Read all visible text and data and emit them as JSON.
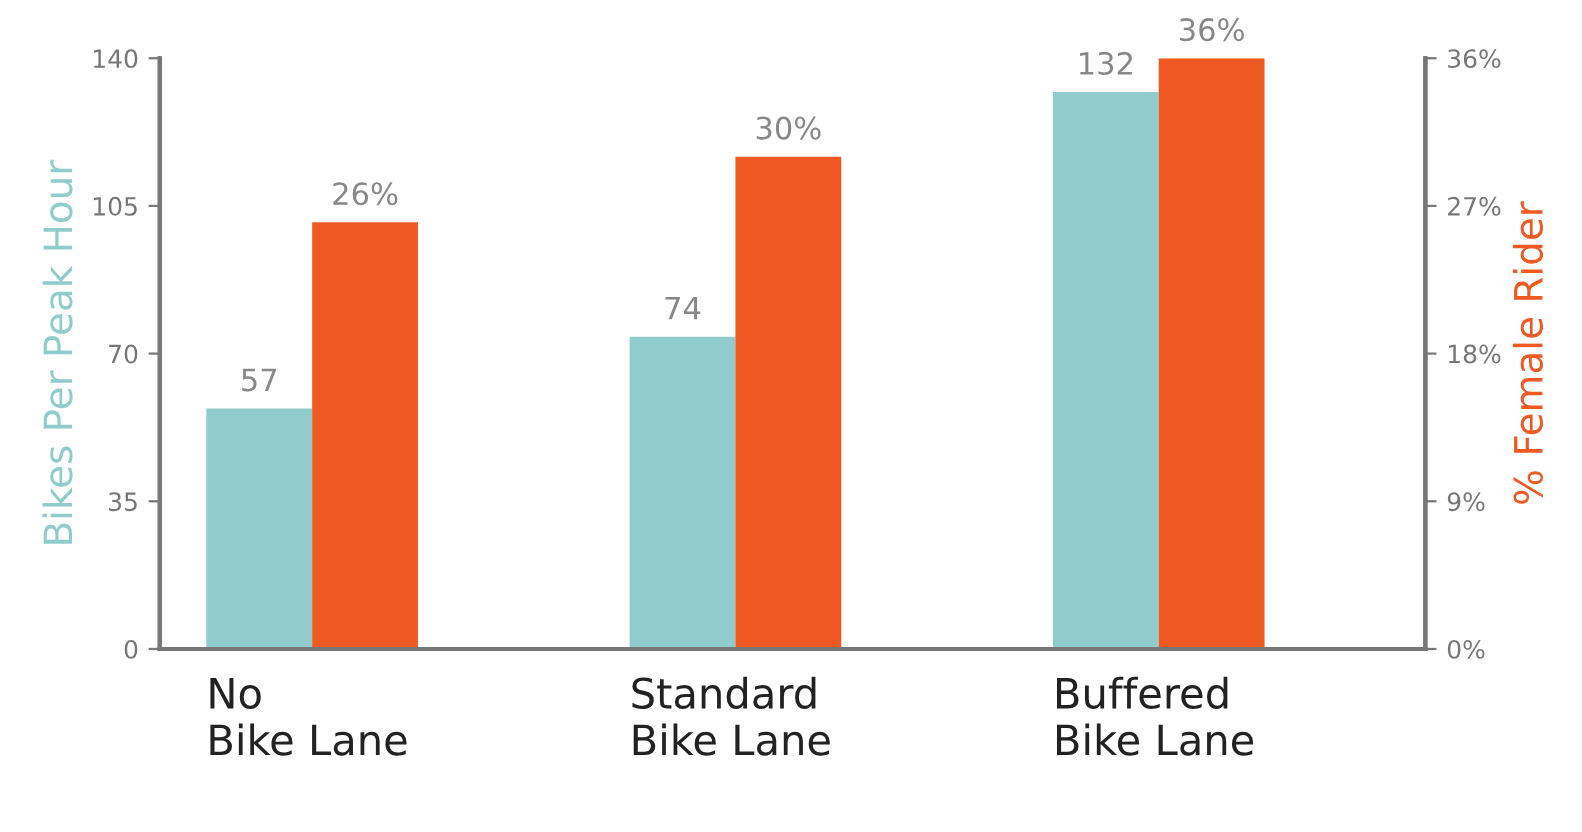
{
  "chart_data": {
    "type": "bar",
    "categories": [
      "No\nBike Lane",
      "Standard\nBike Lane",
      "Buffered\nBike Lane"
    ],
    "ylabel": "Bikes Per Peak Hour",
    "y2label": "% Female Rider",
    "ylim": [
      0,
      140
    ],
    "yticks": [
      0,
      35,
      70,
      105,
      140
    ],
    "y2lim": [
      0,
      36
    ],
    "y2ticks": [
      {
        "value": 0,
        "label": "0%"
      },
      {
        "value": 9,
        "label": "9%"
      },
      {
        "value": 18,
        "label": "18%"
      },
      {
        "value": 27,
        "label": "27%"
      },
      {
        "value": 36,
        "label": "36%"
      }
    ],
    "series": [
      {
        "color": "#8fcccb",
        "values": [
          57,
          74,
          132
        ],
        "value_labels": [
          "57",
          "74",
          "132"
        ]
      },
      {
        "color": "#ef5a24",
        "values": [
          26,
          30,
          36
        ],
        "axis": "y2",
        "value_labels": [
          "26%",
          "30%",
          "36%"
        ]
      }
    ],
    "grid": false,
    "legend": false
  }
}
